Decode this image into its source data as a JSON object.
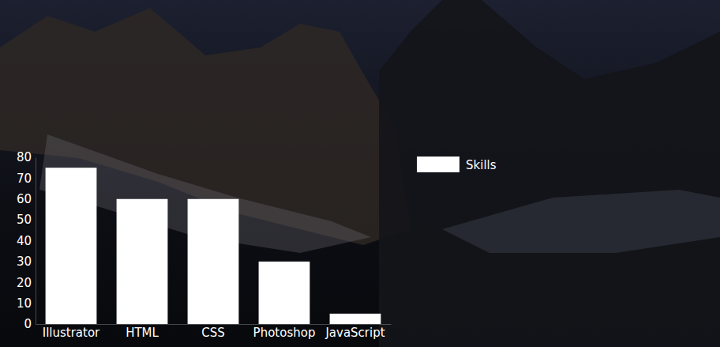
{
  "chart_data": {
    "type": "bar",
    "categories": [
      "Illustrator",
      "HTML",
      "CSS",
      "Photoshop",
      "JavaScript"
    ],
    "series": [
      {
        "name": "Skills",
        "color": "#ffffff",
        "values": [
          75,
          60,
          60,
          30,
          5
        ]
      }
    ],
    "ylim": [
      0,
      80
    ],
    "yticks": [
      0,
      10,
      20,
      30,
      40,
      50,
      60,
      70,
      80
    ],
    "grid": false,
    "legend": "upper right"
  }
}
